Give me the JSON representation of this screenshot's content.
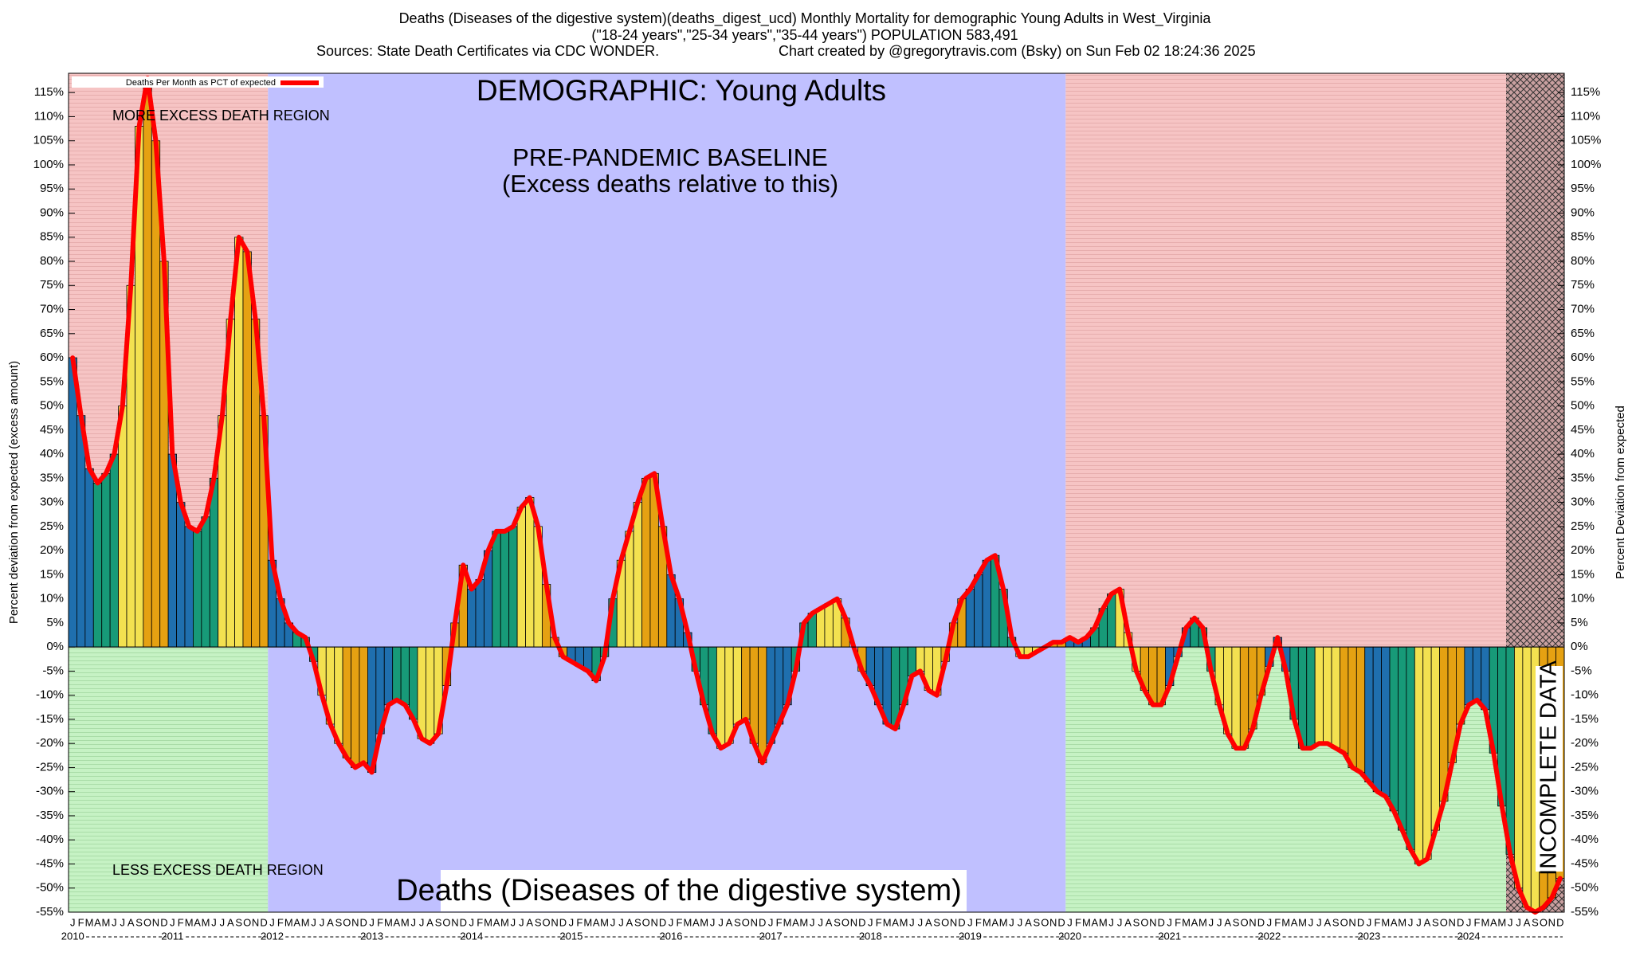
{
  "chart_data": {
    "type": "bar",
    "title": "Deaths (Diseases of the digestive system)(deaths_digest_ucd) Monthly Mortality for demographic Young Adults in West_Virginia",
    "subtitle": "(\"18-24 years\",\"25-34 years\",\"35-44 years\") POPULATION 583,491",
    "sources": "Sources: State Death Certificates via CDC WONDER.",
    "credit": "Chart created by @gregorytravis.com (Bsky) on Sun Feb 02 18:24:36 2025",
    "demographic_label": "DEMOGRAPHIC: Young Adults",
    "baseline_label": "PRE-PANDEMIC BASELINE",
    "baseline_sublabel": "(Excess deaths relative to this)",
    "more_label": "MORE EXCESS DEATH REGION",
    "less_label": "LESS EXCESS DEATH REGION",
    "cause_label": "Deaths (Diseases of the digestive system)",
    "incomplete_label": "INCOMPLETE DATA",
    "ylabel": "Percent deviation from expected (excess amount)",
    "y2label": "Percent Deviation from expected",
    "years": [
      "2010",
      "2011",
      "2012",
      "2013",
      "2014",
      "2015",
      "2016",
      "2017",
      "2018",
      "2019",
      "2020",
      "2021",
      "2022",
      "2023",
      "2024"
    ],
    "categories": [
      "J",
      "F",
      "M",
      "A",
      "M",
      "J",
      "J",
      "A",
      "S",
      "O",
      "N",
      "D",
      "J",
      "F",
      "M",
      "A",
      "M",
      "J",
      "J",
      "A",
      "S",
      "O",
      "N",
      "D",
      "J",
      "F",
      "M",
      "A",
      "M",
      "J",
      "J",
      "A",
      "S",
      "O",
      "N",
      "D",
      "J",
      "F",
      "M",
      "A",
      "M",
      "J",
      "J",
      "A",
      "S",
      "O",
      "N",
      "D",
      "J",
      "F",
      "M",
      "A",
      "M",
      "J",
      "J",
      "A",
      "S",
      "O",
      "N",
      "D",
      "J",
      "F",
      "M",
      "A",
      "M",
      "J",
      "J",
      "A",
      "S",
      "O",
      "N",
      "D",
      "J",
      "F",
      "M",
      "A",
      "M",
      "J",
      "J",
      "A",
      "S",
      "O",
      "N",
      "D",
      "J",
      "F",
      "M",
      "A",
      "M",
      "J",
      "J",
      "A",
      "S",
      "O",
      "N",
      "D",
      "J",
      "F",
      "M",
      "A",
      "M",
      "J",
      "J",
      "A",
      "S",
      "O",
      "N",
      "D",
      "J",
      "F",
      "M",
      "A",
      "M",
      "J",
      "J",
      "A",
      "S",
      "O",
      "N",
      "D",
      "J",
      "F",
      "M",
      "A",
      "M",
      "J",
      "J",
      "A",
      "S",
      "O",
      "N",
      "D",
      "J",
      "F",
      "M",
      "A",
      "M",
      "J",
      "J",
      "A",
      "S",
      "O",
      "N",
      "D",
      "J",
      "F",
      "M",
      "A",
      "M",
      "J",
      "J",
      "A",
      "S",
      "O",
      "N",
      "D",
      "J",
      "F",
      "M",
      "A",
      "M",
      "J",
      "J",
      "A",
      "S",
      "O",
      "N",
      "D",
      "J",
      "F",
      "M",
      "A",
      "M",
      "J",
      "J",
      "A",
      "S",
      "O",
      "N",
      "D"
    ],
    "series": [
      {
        "name": "Deaths Per Month as PCT of expected",
        "color": "#ff0000",
        "values": [
          60,
          48,
          37,
          34,
          36,
          40,
          50,
          75,
          108,
          118,
          105,
          80,
          40,
          30,
          25,
          24,
          27,
          35,
          48,
          68,
          85,
          82,
          68,
          48,
          18,
          10,
          5,
          3,
          2,
          -3,
          -10,
          -16,
          -20,
          -23,
          -25,
          -24,
          -26,
          -18,
          -12,
          -11,
          -12,
          -15,
          -19,
          -20,
          -18,
          -8,
          5,
          17,
          12,
          14,
          20,
          24,
          24,
          25,
          29,
          31,
          25,
          13,
          2,
          -2,
          -3,
          -4,
          -5,
          -7,
          -2,
          10,
          18,
          24,
          30,
          35,
          36,
          25,
          15,
          10,
          3,
          -5,
          -12,
          -18,
          -21,
          -20,
          -16,
          -15,
          -20,
          -24,
          -20,
          -16,
          -12,
          -5,
          5,
          7,
          8,
          9,
          10,
          6,
          0,
          -5,
          -8,
          -12,
          -16,
          -17,
          -12,
          -6,
          -5,
          -9,
          -10,
          -3,
          5,
          10,
          12,
          15,
          18,
          19,
          12,
          2,
          -2,
          -2,
          -1,
          0,
          1,
          1,
          2,
          1,
          2,
          4,
          8,
          11,
          12,
          3,
          -5,
          -9,
          -12,
          -12,
          -8,
          -2,
          4,
          6,
          4,
          -5,
          -12,
          -18,
          -21,
          -21,
          -17,
          -10,
          -4,
          2,
          -5,
          -15,
          -21,
          -21,
          -20,
          -20,
          -21,
          -22,
          -25,
          -26,
          -28,
          -30,
          -31,
          -34,
          -38,
          -42,
          -45,
          -44,
          -38,
          -32,
          -24,
          -16,
          -12,
          -11,
          -13,
          -22,
          -33,
          -43,
          -50,
          -54,
          -55,
          -54,
          -52,
          -48
        ]
      }
    ],
    "quarter_colors": [
      "#1f6fae",
      "#179a78",
      "#f3e150",
      "#e5a112"
    ],
    "ylim": [
      -55,
      119
    ],
    "yticks": [
      {
        "value": -55,
        "label": "-55%"
      },
      {
        "value": -50,
        "label": "-50%"
      },
      {
        "value": -45,
        "label": "-45%"
      },
      {
        "value": -40,
        "label": "-40%"
      },
      {
        "value": -35,
        "label": "-35%"
      },
      {
        "value": -30,
        "label": "-30%"
      },
      {
        "value": -25,
        "label": "-25%"
      },
      {
        "value": -20,
        "label": "-20%"
      },
      {
        "value": -15,
        "label": "-15%"
      },
      {
        "value": -10,
        "label": "-10%"
      },
      {
        "value": -5,
        "label": "-5%"
      },
      {
        "value": 0,
        "label": "0%"
      },
      {
        "value": 5,
        "label": "5%"
      },
      {
        "value": 10,
        "label": "10%"
      },
      {
        "value": 15,
        "label": "15%"
      },
      {
        "value": 20,
        "label": "20%"
      },
      {
        "value": 25,
        "label": "25%"
      },
      {
        "value": 30,
        "label": "30%"
      },
      {
        "value": 35,
        "label": "35%"
      },
      {
        "value": 40,
        "label": "40%"
      },
      {
        "value": 45,
        "label": "45%"
      },
      {
        "value": 50,
        "label": "50%"
      },
      {
        "value": 55,
        "label": "55%"
      },
      {
        "value": 60,
        "label": "60%"
      },
      {
        "value": 65,
        "label": "65%"
      },
      {
        "value": 70,
        "label": "70%"
      },
      {
        "value": 75,
        "label": "75%"
      },
      {
        "value": 80,
        "label": "80%"
      },
      {
        "value": 85,
        "label": "85%"
      },
      {
        "value": 90,
        "label": "90%"
      },
      {
        "value": 95,
        "label": "95%"
      },
      {
        "value": 100,
        "label": "100%"
      },
      {
        "value": 105,
        "label": "105%"
      },
      {
        "value": 110,
        "label": "110%"
      },
      {
        "value": 115,
        "label": "115%"
      }
    ]
  }
}
